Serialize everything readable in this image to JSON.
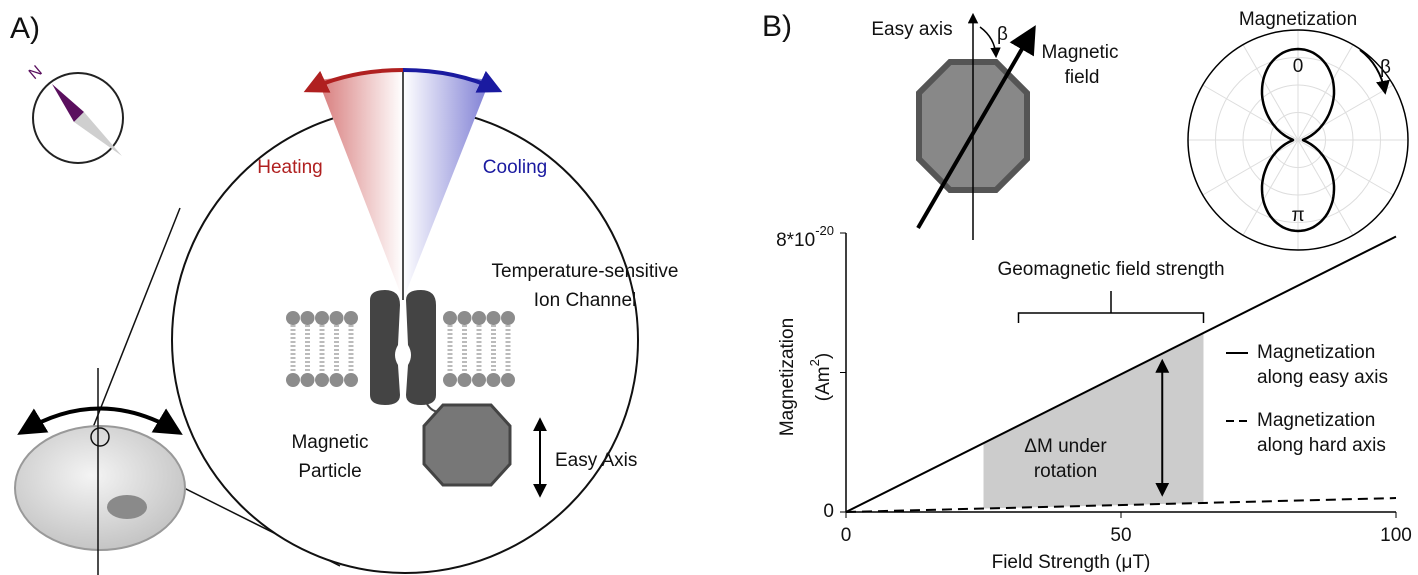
{
  "panel_a": {
    "label": "A)",
    "compass_label": "N",
    "heating": "Heating",
    "cooling": "Cooling",
    "channel_label": [
      "Temperature-sensitive",
      "Ion Channel"
    ],
    "particle_label": [
      "Magnetic",
      "Particle"
    ],
    "easy_axis": "Easy Axis"
  },
  "panel_b": {
    "label": "B)",
    "easy_axis": "Easy axis",
    "beta": "β",
    "field_label": [
      "Magnetic",
      "field"
    ],
    "polar": {
      "title": "Magnetization",
      "angle_0": "0",
      "angle_pi": "π",
      "beta": "β"
    }
  },
  "chart_data": {
    "type": "line",
    "x_label": "Field Strength (μT)",
    "y_label": {
      "line1": "Magnetization",
      "line2": "(Am",
      "sup": "2",
      "end": ")"
    },
    "x": [
      0,
      100
    ],
    "series": [
      {
        "name": "Magnetization along easy axis",
        "color": "#000000",
        "style": "solid",
        "values": [
          0,
          7.9e-20
        ]
      },
      {
        "name": "Magnetization along hard axis",
        "color": "#000000",
        "style": "dashed",
        "values": [
          0,
          4e-21
        ]
      }
    ],
    "xlim": [
      0,
      100
    ],
    "ylim": [
      0,
      8e-20
    ],
    "xticks": [
      0,
      50,
      100
    ],
    "yticks": [
      0,
      {
        "value": 4e-20,
        "label": null
      },
      {
        "value": 8e-20,
        "label": "8*10",
        "label_exp": "-20"
      }
    ],
    "shaded": {
      "x": [
        25,
        65
      ],
      "color": "#cccccc",
      "label": [
        "ΔM under",
        "rotation"
      ]
    },
    "bracket_label": "Geomagnetic field strength"
  }
}
